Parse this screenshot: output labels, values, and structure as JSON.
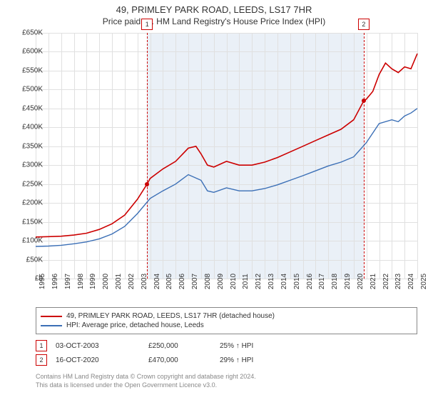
{
  "titles": {
    "address": "49, PRIMLEY PARK ROAD, LEEDS, LS17 7HR",
    "subtitle": "Price paid vs. HM Land Registry's House Price Index (HPI)"
  },
  "chart": {
    "type": "line",
    "xlim": [
      1995,
      2025
    ],
    "ylim": [
      0,
      650000
    ],
    "xticks": [
      1995,
      1996,
      1997,
      1998,
      1999,
      2000,
      2001,
      2002,
      2003,
      2004,
      2005,
      2006,
      2007,
      2008,
      2009,
      2010,
      2011,
      2012,
      2013,
      2014,
      2015,
      2016,
      2017,
      2018,
      2019,
      2020,
      2021,
      2022,
      2023,
      2024,
      2025
    ],
    "yticks": [
      0,
      50000,
      100000,
      150000,
      200000,
      250000,
      300000,
      350000,
      400000,
      450000,
      500000,
      550000,
      600000,
      650000
    ],
    "ytick_labels": [
      "£0",
      "£50K",
      "£100K",
      "£150K",
      "£200K",
      "£250K",
      "£300K",
      "£350K",
      "£400K",
      "£450K",
      "£500K",
      "£550K",
      "£600K",
      "£650K"
    ],
    "grid_color": "#e0e0e0",
    "background_color": "#ffffff",
    "shade_color": "#eaf0f7",
    "shade_xrange": [
      2003.76,
      2020.79
    ],
    "axis_fontsize": 10,
    "series": [
      {
        "name": "property",
        "label": "49, PRIMLEY PARK ROAD, LEEDS, LS17 7HR (detached house)",
        "color": "#cc0000",
        "stroke_width": 1.6,
        "points": [
          [
            1995,
            110000
          ],
          [
            1996,
            111000
          ],
          [
            1997,
            112000
          ],
          [
            1998,
            115000
          ],
          [
            1999,
            120000
          ],
          [
            2000,
            130000
          ],
          [
            2001,
            145000
          ],
          [
            2002,
            168000
          ],
          [
            2003,
            210000
          ],
          [
            2003.76,
            250000
          ],
          [
            2004,
            265000
          ],
          [
            2005,
            290000
          ],
          [
            2006,
            310000
          ],
          [
            2007,
            345000
          ],
          [
            2007.6,
            350000
          ],
          [
            2008,
            330000
          ],
          [
            2008.5,
            300000
          ],
          [
            2009,
            295000
          ],
          [
            2010,
            310000
          ],
          [
            2011,
            300000
          ],
          [
            2012,
            300000
          ],
          [
            2013,
            308000
          ],
          [
            2014,
            320000
          ],
          [
            2015,
            335000
          ],
          [
            2016,
            350000
          ],
          [
            2017,
            365000
          ],
          [
            2018,
            380000
          ],
          [
            2019,
            395000
          ],
          [
            2020,
            420000
          ],
          [
            2020.79,
            470000
          ],
          [
            2021,
            475000
          ],
          [
            2021.5,
            495000
          ],
          [
            2022,
            540000
          ],
          [
            2022.5,
            570000
          ],
          [
            2023,
            555000
          ],
          [
            2023.5,
            545000
          ],
          [
            2024,
            560000
          ],
          [
            2024.5,
            555000
          ],
          [
            2025,
            595000
          ]
        ]
      },
      {
        "name": "hpi",
        "label": "HPI: Average price, detached house, Leeds",
        "color": "#3b6fb6",
        "stroke_width": 1.4,
        "points": [
          [
            1995,
            85000
          ],
          [
            1996,
            86000
          ],
          [
            1997,
            88000
          ],
          [
            1998,
            92000
          ],
          [
            1999,
            97000
          ],
          [
            2000,
            105000
          ],
          [
            2001,
            118000
          ],
          [
            2002,
            138000
          ],
          [
            2003,
            172000
          ],
          [
            2004,
            212000
          ],
          [
            2005,
            232000
          ],
          [
            2006,
            250000
          ],
          [
            2007,
            275000
          ],
          [
            2008,
            260000
          ],
          [
            2008.5,
            232000
          ],
          [
            2009,
            228000
          ],
          [
            2010,
            240000
          ],
          [
            2011,
            232000
          ],
          [
            2012,
            232000
          ],
          [
            2013,
            238000
          ],
          [
            2014,
            248000
          ],
          [
            2015,
            260000
          ],
          [
            2016,
            272000
          ],
          [
            2017,
            285000
          ],
          [
            2018,
            298000
          ],
          [
            2019,
            308000
          ],
          [
            2020,
            322000
          ],
          [
            2021,
            360000
          ],
          [
            2022,
            410000
          ],
          [
            2023,
            420000
          ],
          [
            2023.5,
            415000
          ],
          [
            2024,
            430000
          ],
          [
            2024.5,
            438000
          ],
          [
            2025,
            450000
          ]
        ]
      }
    ],
    "markers": [
      {
        "n": "1",
        "x": 2003.76,
        "y": 250000,
        "color": "#cc0000"
      },
      {
        "n": "2",
        "x": 2020.79,
        "y": 470000,
        "color": "#cc0000"
      }
    ]
  },
  "legend": {
    "border_color": "#888888",
    "rows": [
      {
        "color": "#cc0000",
        "label": "49, PRIMLEY PARK ROAD, LEEDS, LS17 7HR (detached house)"
      },
      {
        "color": "#3b6fb6",
        "label": "HPI: Average price, detached house, Leeds"
      }
    ]
  },
  "transactions": [
    {
      "n": "1",
      "border": "#cc0000",
      "date": "03-OCT-2003",
      "price": "£250,000",
      "delta": "25% ↑ HPI"
    },
    {
      "n": "2",
      "border": "#cc0000",
      "date": "16-OCT-2020",
      "price": "£470,000",
      "delta": "29% ↑ HPI"
    }
  ],
  "footer": {
    "line1": "Contains HM Land Registry data © Crown copyright and database right 2024.",
    "line2": "This data is licensed under the Open Government Licence v3.0."
  }
}
